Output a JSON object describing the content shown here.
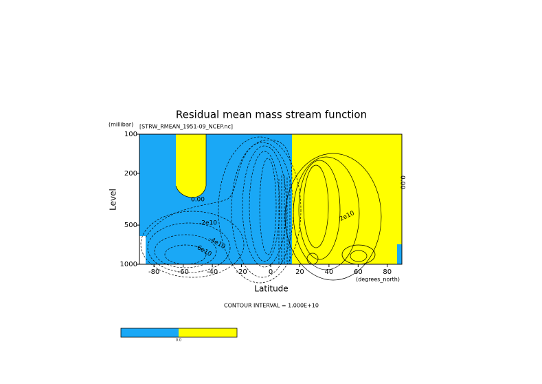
{
  "chart_data": {
    "type": "contour",
    "title": "Residual mean mass stream function",
    "subtitle": "[STRW_RMEAN_1951-09_NCEP.nc]",
    "x_label": "Latitude",
    "x_units": "(degrees_north)",
    "y_label": "Level",
    "y_units": "(millibar)",
    "xlim": [
      -90,
      90
    ],
    "xticks": [
      -80,
      -60,
      -40,
      -20,
      0,
      20,
      40,
      60,
      80
    ],
    "ylim": [
      1000,
      100
    ],
    "yticks": [
      100,
      200,
      500,
      1000
    ],
    "log_y": true,
    "contour_labels": [
      "0.00",
      "-2e10",
      "-4e10",
      "-6e10",
      "2e10",
      "0.00"
    ],
    "footer": "CONTOUR INTERVAL = 1.000E+10",
    "negative_color": "#1aa8f6",
    "positive_color": "#ffff00",
    "colorbar_labels": [
      "0.0"
    ]
  }
}
